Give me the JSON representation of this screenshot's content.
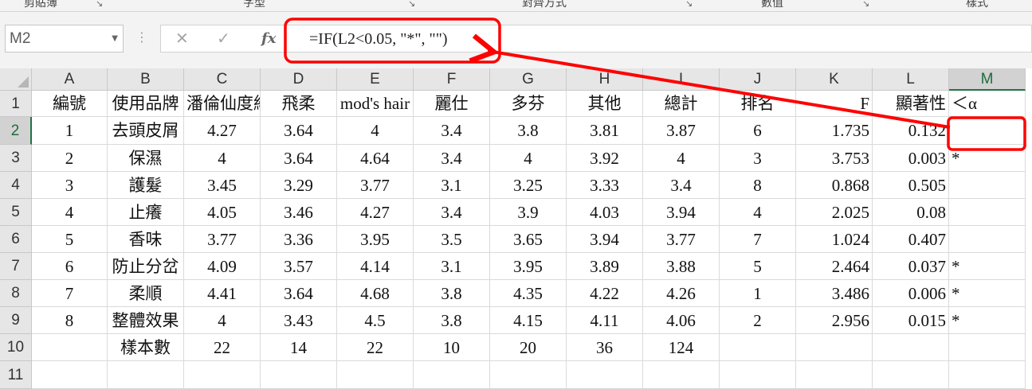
{
  "ribbon": {
    "groups": [
      {
        "label": "剪貼簿"
      },
      {
        "label": "字型"
      },
      {
        "label": "對齊方式"
      },
      {
        "label": "數值"
      },
      {
        "label": "樣式"
      }
    ]
  },
  "formula_bar": {
    "name_box": "M2",
    "cancel_icon": "✕",
    "enter_icon": "✓",
    "fx_label": "fx",
    "formula": "=IF(L2<0.05, \"*\",  \"\")"
  },
  "sheet": {
    "columns": [
      "A",
      "B",
      "C",
      "D",
      "E",
      "F",
      "G",
      "H",
      "I",
      "J",
      "K",
      "L",
      "M"
    ],
    "rows": [
      "1",
      "2",
      "3",
      "4",
      "5",
      "6",
      "7",
      "8",
      "9",
      "10",
      "11"
    ],
    "selected_cell": "M2",
    "cells": [
      [
        "編號",
        "使用品牌",
        "潘倫仙度絲",
        "飛柔",
        "mod's hair",
        "麗仕",
        "多芬",
        "其他",
        "總計",
        "排名",
        "F",
        "顯著性",
        "＜α"
      ],
      [
        "1",
        "去頭皮屑",
        "4.27",
        "3.64",
        "4",
        "3.4",
        "3.8",
        "3.81",
        "3.87",
        "6",
        "1.735",
        "0.132",
        ""
      ],
      [
        "2",
        "保濕",
        "4",
        "3.64",
        "4.64",
        "3.4",
        "4",
        "3.92",
        "4",
        "3",
        "3.753",
        "0.003",
        "*"
      ],
      [
        "3",
        "護髮",
        "3.45",
        "3.29",
        "3.77",
        "3.1",
        "3.25",
        "3.33",
        "3.4",
        "8",
        "0.868",
        "0.505",
        ""
      ],
      [
        "4",
        "止癢",
        "4.05",
        "3.46",
        "4.27",
        "3.4",
        "3.9",
        "4.03",
        "3.94",
        "4",
        "2.025",
        "0.08",
        ""
      ],
      [
        "5",
        "香味",
        "3.77",
        "3.36",
        "3.95",
        "3.5",
        "3.65",
        "3.94",
        "3.77",
        "7",
        "1.024",
        "0.407",
        ""
      ],
      [
        "6",
        "防止分岔",
        "4.09",
        "3.57",
        "4.14",
        "3.1",
        "3.95",
        "3.89",
        "3.88",
        "5",
        "2.464",
        "0.037",
        "*"
      ],
      [
        "7",
        "柔順",
        "4.41",
        "3.64",
        "4.68",
        "3.8",
        "4.35",
        "4.22",
        "4.26",
        "1",
        "3.486",
        "0.006",
        "*"
      ],
      [
        "8",
        "整體效果",
        "4",
        "3.43",
        "4.5",
        "3.8",
        "4.15",
        "4.11",
        "4.06",
        "2",
        "2.956",
        "0.015",
        "*"
      ],
      [
        "",
        "樣本數",
        "22",
        "14",
        "22",
        "10",
        "20",
        "36",
        "124",
        "",
        "",
        "",
        ""
      ],
      [
        "",
        "",
        "",
        "",
        "",
        "",
        "",
        "",
        "",
        "",
        "",
        "",
        ""
      ]
    ]
  },
  "annotation": {
    "color": "#ff0000"
  }
}
